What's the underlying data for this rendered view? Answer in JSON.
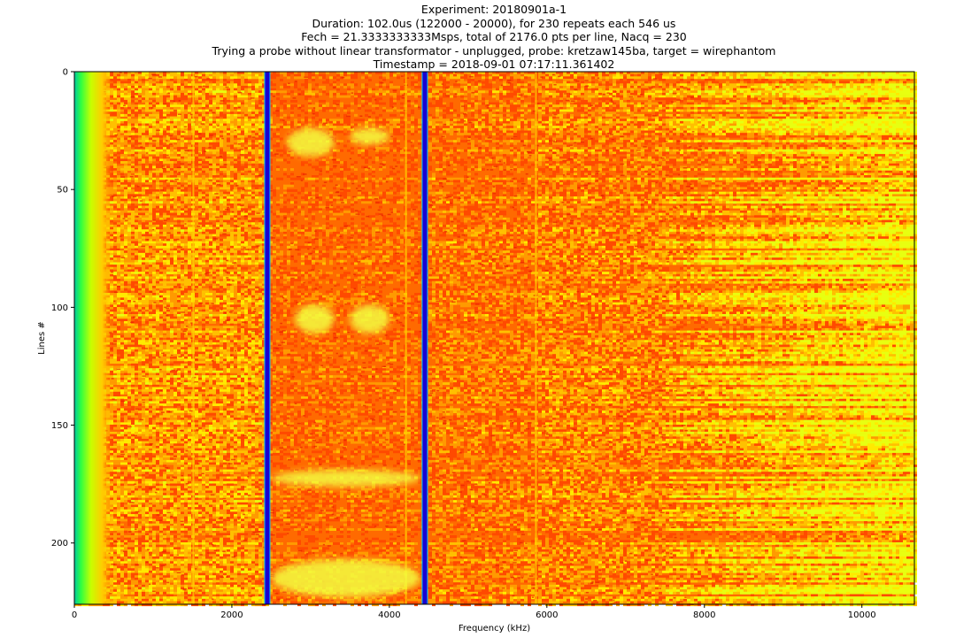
{
  "title_lines": [
    "Experiment: 20180901a-1",
    "Duration: 102.0us (122000 - 20000), for 230 repeats each 546 us",
    "Fech = 21.3333333333Msps, total of 2176.0 pts per line, Nacq = 230",
    "Trying a probe without linear transformator - unplugged, probe: kretzaw145ba, target = wirephantom",
    "Timestamp = 2018-09-01 07:17:11.361402"
  ],
  "chart_data": {
    "type": "heatmap",
    "title": "Experiment: 20180901a-1",
    "xlabel": "Frequency (kHz)",
    "ylabel": "Lines #",
    "xlim": [
      0,
      10666.67
    ],
    "ylim": [
      226,
      0
    ],
    "xticks": [
      0,
      2000,
      4000,
      6000,
      8000,
      10000
    ],
    "xtick_labels": [
      "0",
      "2000",
      "4000",
      "6000",
      "8000",
      "10000"
    ],
    "yticks": [
      0,
      50,
      100,
      150,
      200
    ],
    "ytick_labels": [
      "0",
      "50",
      "100",
      "150",
      "200"
    ],
    "colormap": "jet",
    "grid": false,
    "vertical_bands": [
      {
        "x": 2450,
        "color": "#1a00d0",
        "description": "low-value band"
      },
      {
        "x": 4450,
        "color": "#1a00d0",
        "description": "low-value band"
      }
    ],
    "bright_features": [
      {
        "x_range": [
          2700,
          3300
        ],
        "lines": [
          25,
          35
        ]
      },
      {
        "x_range": [
          3500,
          4000
        ],
        "lines": [
          25,
          30
        ]
      },
      {
        "x_range": [
          2800,
          3300
        ],
        "lines": [
          100,
          110
        ]
      },
      {
        "x_range": [
          3500,
          4000
        ],
        "lines": [
          100,
          110
        ]
      },
      {
        "x_range": [
          2500,
          4400
        ],
        "lines": [
          170,
          175
        ]
      },
      {
        "x_range": [
          2500,
          4400
        ],
        "lines": [
          208,
          222
        ]
      }
    ]
  }
}
